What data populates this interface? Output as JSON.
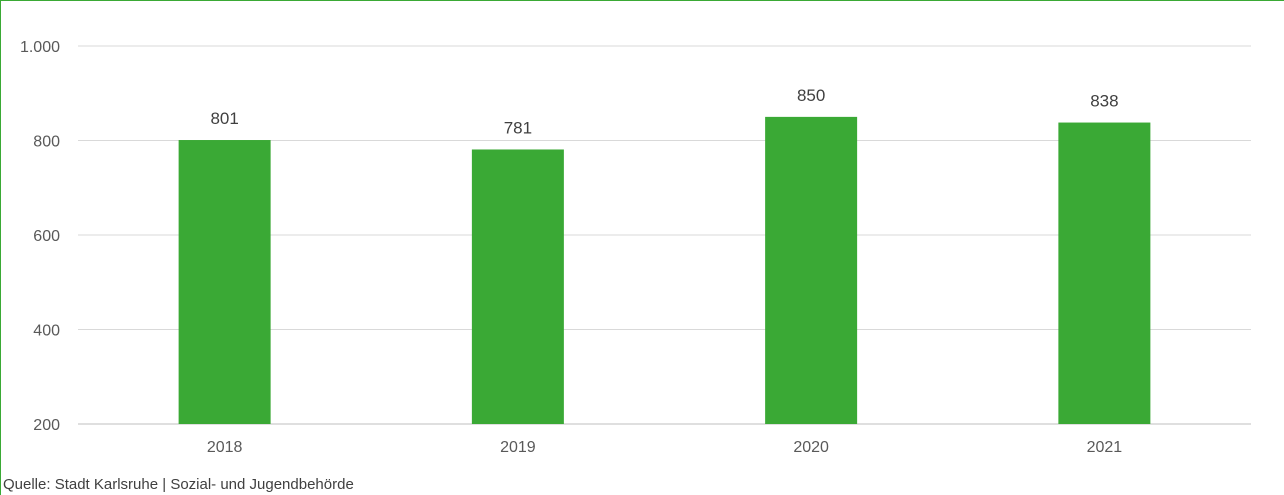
{
  "chart_data": {
    "type": "bar",
    "categories": [
      "2018",
      "2019",
      "2020",
      "2021"
    ],
    "values": [
      801,
      781,
      850,
      838
    ],
    "data_labels": [
      "801",
      "781",
      "850",
      "838"
    ],
    "y_ticks": [
      200,
      400,
      600,
      800,
      1000
    ],
    "y_tick_labels": [
      "200",
      "400",
      "600",
      "800",
      "1.000"
    ],
    "ylim": [
      200,
      1000
    ],
    "grid": true,
    "legend": "none",
    "bar_color": "#3aa935",
    "frame_color": "#3aa935"
  },
  "source": "Quelle: Stadt Karlsruhe | Sozial- und Jugendbehörde"
}
